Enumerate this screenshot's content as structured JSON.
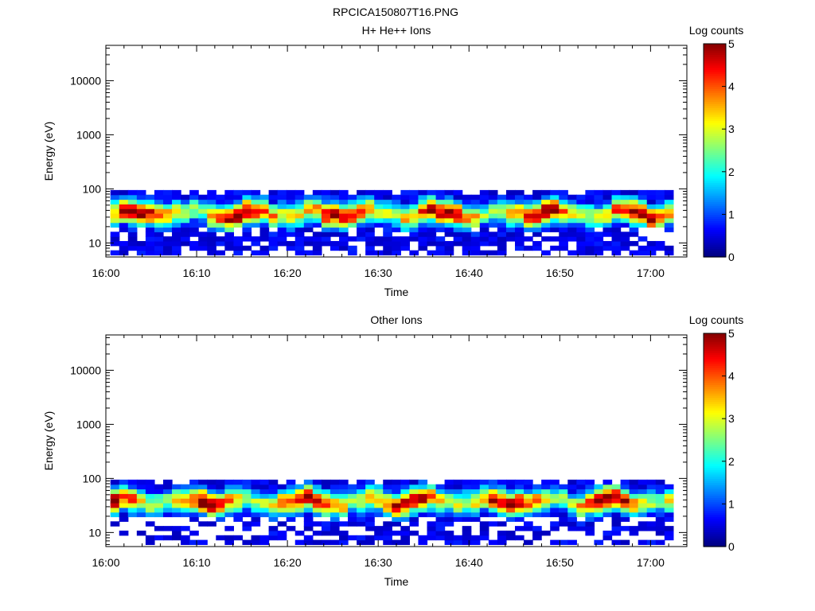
{
  "figure_title": "RPCICA150807T16.PNG",
  "colormap_stops": [
    "#000080",
    "#0000ff",
    "#0080ff",
    "#00ffff",
    "#7fff7f",
    "#ffff00",
    "#ff8000",
    "#ff0000",
    "#800000"
  ],
  "chart_data": [
    {
      "type": "heatmap",
      "title": "H+ He++ Ions",
      "xlabel": "Time",
      "ylabel": "Energy (eV)",
      "x_ticks": [
        "16:00",
        "16:10",
        "16:20",
        "16:30",
        "16:40",
        "16:50",
        "17:00"
      ],
      "x_range_minutes": [
        0,
        64
      ],
      "y_scale": "log",
      "y_ticks": [
        "10",
        "100",
        "1000",
        "10000"
      ],
      "y_range": [
        5.5,
        45000
      ],
      "colorbar_label": "Log counts",
      "colorbar_ticks": [
        "0",
        "1",
        "2",
        "3",
        "4",
        "5"
      ],
      "colorbar_range": [
        0,
        5
      ],
      "data_time_range_minutes": [
        0.5,
        62.5
      ],
      "data_energy_range_eV": [
        6,
        95
      ],
      "peak_energy_eV": 35,
      "peak_log_counts": 4.9,
      "grid": false
    },
    {
      "type": "heatmap",
      "title": "Other Ions",
      "xlabel": "Time",
      "ylabel": "Energy (eV)",
      "x_ticks": [
        "16:00",
        "16:10",
        "16:20",
        "16:30",
        "16:40",
        "16:50",
        "17:00"
      ],
      "x_range_minutes": [
        0,
        64
      ],
      "y_scale": "log",
      "y_ticks": [
        "10",
        "100",
        "1000",
        "10000"
      ],
      "y_range": [
        5.5,
        45000
      ],
      "colorbar_label": "Log counts",
      "colorbar_ticks": [
        "0",
        "1",
        "2",
        "3",
        "4",
        "5"
      ],
      "colorbar_range": [
        0,
        5
      ],
      "data_time_range_minutes": [
        0.5,
        62.5
      ],
      "data_energy_range_eV": [
        6,
        95
      ],
      "peak_energy_eV": 38,
      "peak_log_counts": 4.9,
      "grid": false
    }
  ]
}
